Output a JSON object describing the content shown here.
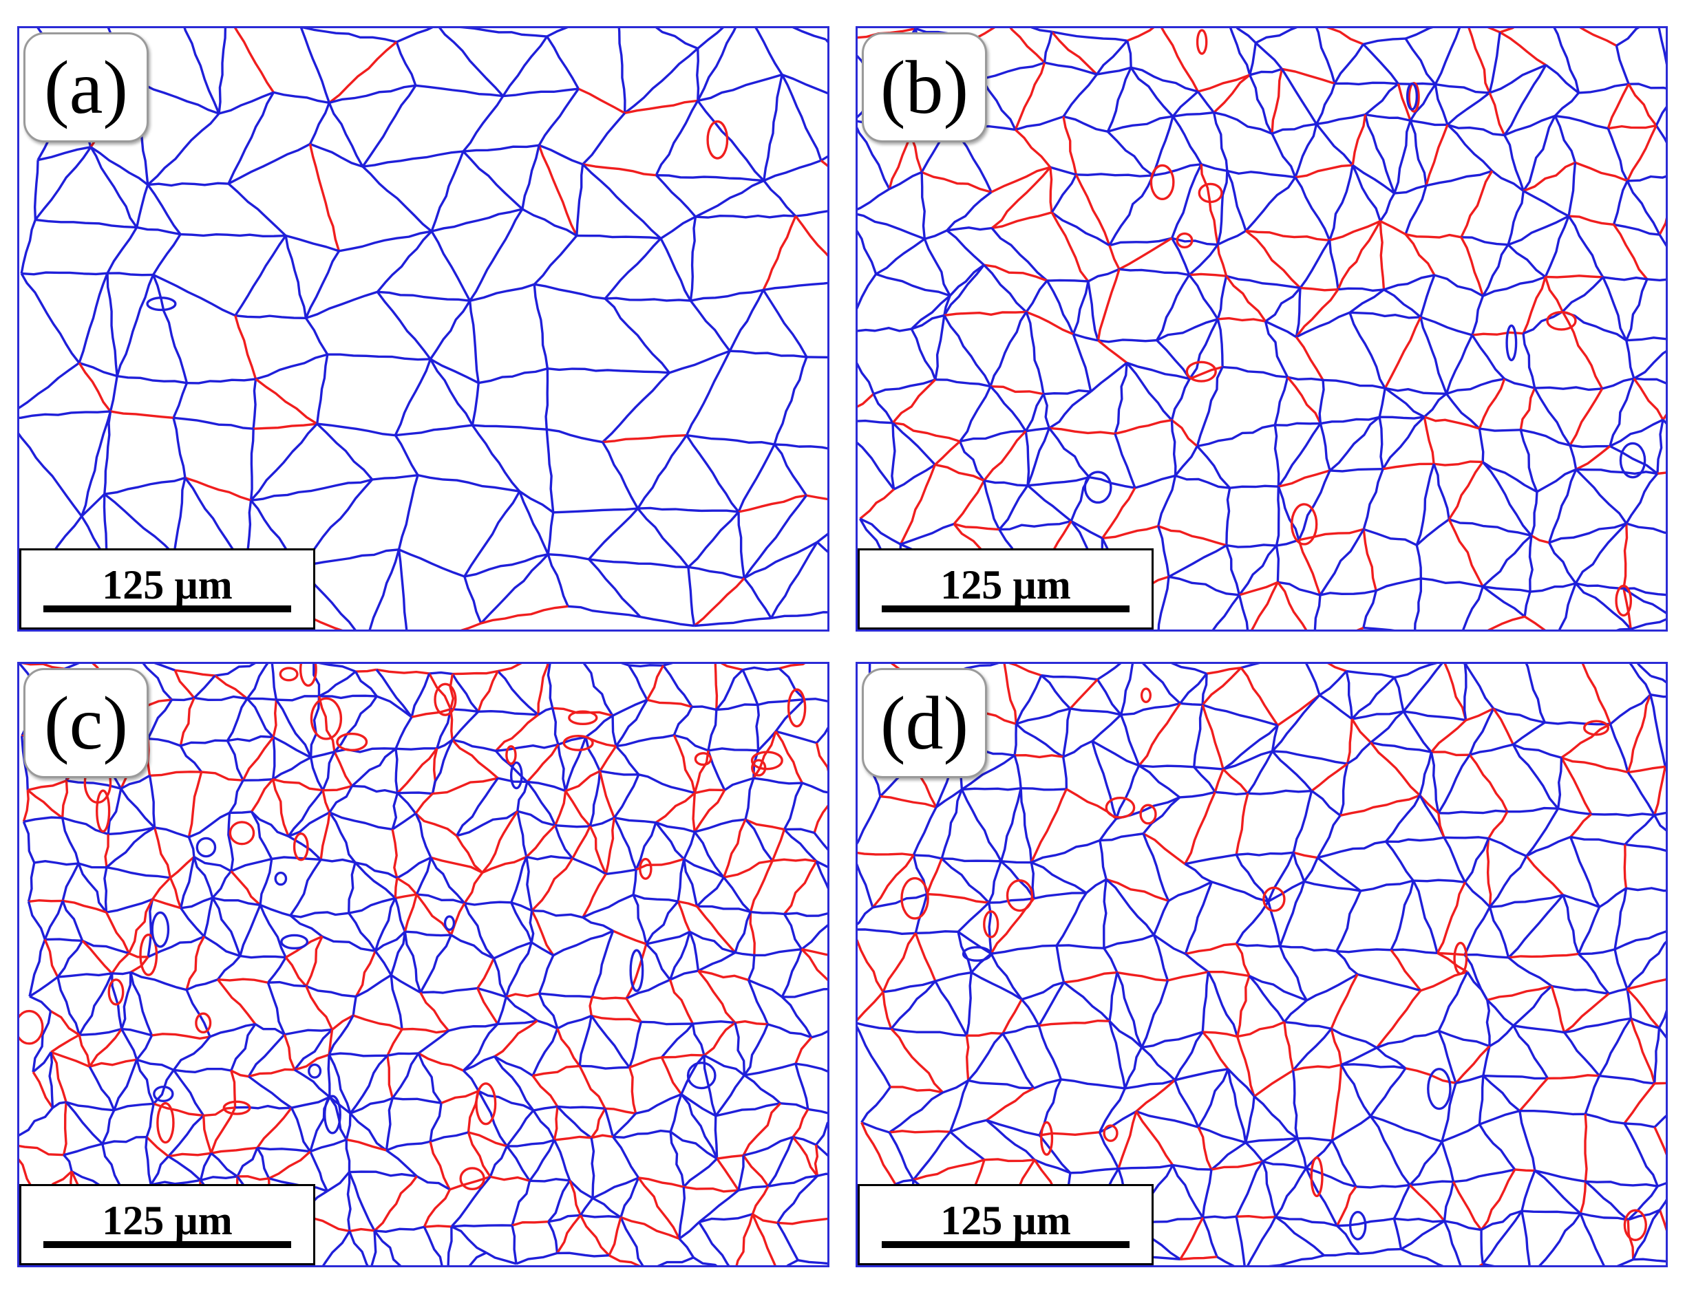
{
  "figure": {
    "panels": [
      {
        "label": "(a)",
        "scale": "125 µm"
      },
      {
        "label": "(b)",
        "scale": "125 µm"
      },
      {
        "label": "(c)",
        "scale": "125 µm"
      },
      {
        "label": "(d)",
        "scale": "125 µm"
      }
    ],
    "boundary_colors": {
      "grain": "#1f1fd9",
      "twin": "#f01e1e"
    }
  }
}
